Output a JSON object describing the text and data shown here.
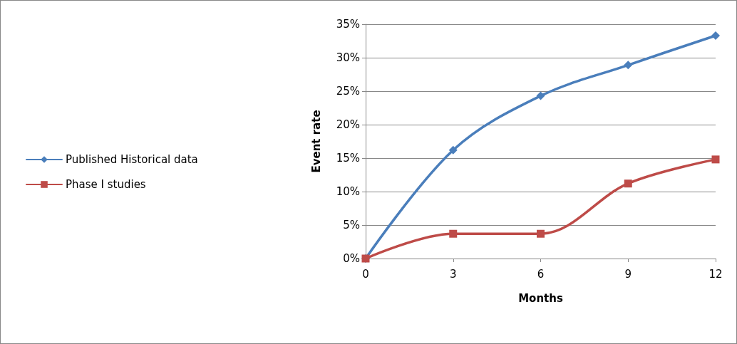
{
  "chart_data": {
    "type": "line",
    "xlabel": "Months",
    "ylabel": "Event rate",
    "x": [
      0,
      3,
      6,
      9,
      12
    ],
    "series": [
      {
        "name": "Published Historical data",
        "color": "#4a7ebb",
        "marker": "diamond",
        "values": [
          0,
          16.2,
          24.3,
          28.9,
          33.3
        ]
      },
      {
        "name": "Phase I studies",
        "color": "#be4b48",
        "marker": "square",
        "values": [
          0,
          3.7,
          3.7,
          11.2,
          14.8
        ]
      }
    ],
    "xlim": [
      0,
      12
    ],
    "xticks": [
      0,
      3,
      6,
      9,
      12
    ],
    "ylim": [
      0,
      35
    ],
    "yticks": [
      {
        "value": 0,
        "label": "0%"
      },
      {
        "value": 5,
        "label": "5%"
      },
      {
        "value": 10,
        "label": "10%"
      },
      {
        "value": 15,
        "label": "15%"
      },
      {
        "value": 20,
        "label": "20%"
      },
      {
        "value": 25,
        "label": "25%"
      },
      {
        "value": 30,
        "label": "30%"
      },
      {
        "value": 35,
        "label": "35%"
      }
    ],
    "grid": "y",
    "legend": "left",
    "line_style": "solid"
  }
}
